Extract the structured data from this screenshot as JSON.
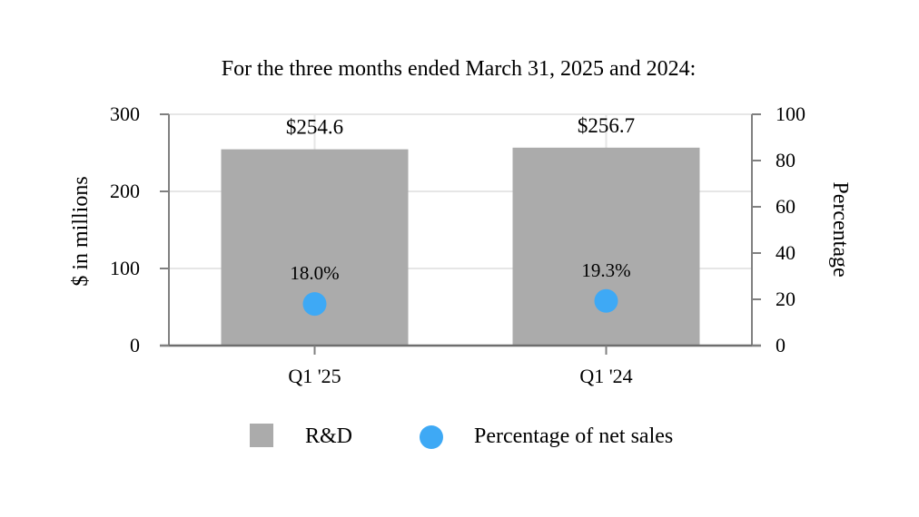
{
  "chart_data": {
    "type": "bar",
    "title": "For the three months ended March 31, 2025 and 2024:",
    "categories": [
      "Q1 '25",
      "Q1 '24"
    ],
    "series": [
      {
        "name": "R&D",
        "kind": "bar",
        "axis": "left",
        "values": [
          254.6,
          256.7
        ],
        "labels": [
          "$254.6",
          "$256.7"
        ],
        "color": "#ababab"
      },
      {
        "name": "Percentage of net sales",
        "kind": "scatter",
        "axis": "right",
        "values": [
          18.0,
          19.3
        ],
        "labels": [
          "18.0%",
          "19.3%"
        ],
        "color": "#3ea9f5"
      }
    ],
    "ylabel": "$ in millions",
    "ylim": [
      0,
      300
    ],
    "yticks": [
      0,
      100,
      200,
      300
    ],
    "y2label": "Percentage",
    "y2lim": [
      0,
      100
    ],
    "y2ticks": [
      0,
      20,
      40,
      60,
      80,
      100
    ],
    "grid": true,
    "legend_position": "bottom"
  }
}
